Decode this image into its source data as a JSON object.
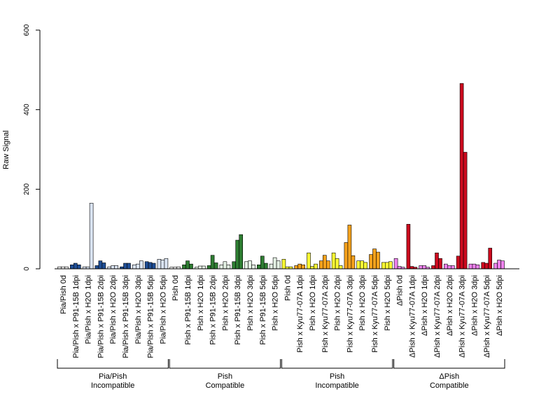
{
  "chart_data": {
    "type": "bar",
    "ylabel": "Raw Signal",
    "ylim": [
      0,
      600
    ],
    "yticks": [
      0,
      200,
      400,
      600
    ],
    "bars_per_category": 3,
    "categories": [
      {
        "label": "Pia/Pish 0d",
        "values": [
          5,
          5,
          5
        ],
        "color": "#f4f4f4"
      },
      {
        "label": "Pia/Pish x P91-15B 1dpi",
        "values": [
          10,
          14,
          10
        ],
        "color": "#1f4e96"
      },
      {
        "label": "Pia/Pish x H2O 1dpi",
        "values": [
          5,
          5,
          165
        ],
        "color": "#dbe5f4"
      },
      {
        "label": "Pia/Pish x P91-15B 2dpi",
        "values": [
          8,
          20,
          15
        ],
        "color": "#1f4e96"
      },
      {
        "label": "Pia/Pish x H2O 2dpi",
        "values": [
          5,
          8,
          8
        ],
        "color": "#dbe5f4"
      },
      {
        "label": "Pia/Pish x P91-15B 3dpi",
        "values": [
          5,
          14,
          14
        ],
        "color": "#1f4e96"
      },
      {
        "label": "Pia/Pish x H2O 3dpi",
        "values": [
          10,
          12,
          20
        ],
        "color": "#dbe5f4"
      },
      {
        "label": "Pia/Pish x P91-15B 5dpi",
        "values": [
          18,
          16,
          14
        ],
        "color": "#1f4e96"
      },
      {
        "label": "Pia/Pish x H2O 5dpi",
        "values": [
          24,
          22,
          26
        ],
        "color": "#dbe5f4"
      },
      {
        "label": "Pish 0d",
        "values": [
          4,
          4,
          5
        ],
        "color": "#f4f4f4"
      },
      {
        "label": "Pish x P91-15B 1dpi",
        "values": [
          10,
          20,
          12
        ],
        "color": "#2e7d32"
      },
      {
        "label": "Pish x H2O 1dpi",
        "values": [
          4,
          7,
          7
        ],
        "color": "#e5f2e5"
      },
      {
        "label": "Pish x P91-15B 2dpi",
        "values": [
          8,
          34,
          15
        ],
        "color": "#2e7d32"
      },
      {
        "label": "Pish x H2O 2dpi",
        "values": [
          10,
          18,
          10
        ],
        "color": "#e5f2e5"
      },
      {
        "label": "Pish x P91-15B 3dpi",
        "values": [
          18,
          72,
          86
        ],
        "color": "#2e7d32"
      },
      {
        "label": "Pish x H2O 3dpi",
        "values": [
          18,
          20,
          10
        ],
        "color": "#e5f2e5"
      },
      {
        "label": "Pish x P91-15B 5dpi",
        "values": [
          10,
          32,
          14
        ],
        "color": "#2e7d32"
      },
      {
        "label": "Pish x H2O 5dpi",
        "values": [
          12,
          28,
          20
        ],
        "color": "#e5f2e5"
      },
      {
        "label": "Pish 0d",
        "values": [
          24,
          5,
          5
        ],
        "color": "#ffff33"
      },
      {
        "label": "Pish x Kyu77-07A 1dpi",
        "values": [
          8,
          12,
          10
        ],
        "color": "#f7a21b"
      },
      {
        "label": "Pish x H2O 1dpi",
        "values": [
          40,
          6,
          12
        ],
        "color": "#ffff33"
      },
      {
        "label": "Pish x Kyu77-07A 2dpi",
        "values": [
          20,
          34,
          20
        ],
        "color": "#f7a21b"
      },
      {
        "label": "Pish x H2O 2dpi",
        "values": [
          40,
          26,
          8
        ],
        "color": "#ffff33"
      },
      {
        "label": "Pish x Kyu77-07A 3dpi",
        "values": [
          66,
          110,
          33
        ],
        "color": "#f7a21b"
      },
      {
        "label": "Pish x H2O 3dpi",
        "values": [
          20,
          20,
          16
        ],
        "color": "#ffff33"
      },
      {
        "label": "Pish x Kyu77-07A 5dpi",
        "values": [
          36,
          50,
          42
        ],
        "color": "#f7a21b"
      },
      {
        "label": "Pish x H2O 5dpi",
        "values": [
          16,
          16,
          18
        ],
        "color": "#ffff33"
      },
      {
        "label": "ΔPish 0d",
        "values": [
          26,
          6,
          4
        ],
        "color": "#ee82ee"
      },
      {
        "label": "ΔPish x Kyu77-07A 1dpi",
        "values": [
          112,
          6,
          4
        ],
        "color": "#cc0a1e"
      },
      {
        "label": "ΔPish x H2O 1dpi",
        "values": [
          8,
          8,
          4
        ],
        "color": "#ee82ee"
      },
      {
        "label": "ΔPish x Kyu77-07A 2dpi",
        "values": [
          8,
          40,
          26
        ],
        "color": "#cc0a1e"
      },
      {
        "label": "ΔPish x H2O 2dpi",
        "values": [
          12,
          8,
          8
        ],
        "color": "#ee82ee"
      },
      {
        "label": "ΔPish x Kyu77-07A 3dpi",
        "values": [
          32,
          466,
          293
        ],
        "color": "#cc0a1e"
      },
      {
        "label": "ΔPish x H2O 3dpi",
        "values": [
          12,
          12,
          10
        ],
        "color": "#ee82ee"
      },
      {
        "label": "ΔPish x Kyu77-07A 5dpi",
        "values": [
          16,
          14,
          52
        ],
        "color": "#cc0a1e"
      },
      {
        "label": "ΔPish x H2O 5dpi",
        "values": [
          14,
          22,
          20
        ],
        "color": "#ee82ee"
      }
    ],
    "groups": [
      {
        "line1": "Pia/Pish",
        "line2": "Incompatible",
        "start": 0,
        "end": 8
      },
      {
        "line1": "Pish",
        "line2": "Compatible",
        "start": 9,
        "end": 17
      },
      {
        "line1": "Pish",
        "line2": "Incompatible",
        "start": 18,
        "end": 26
      },
      {
        "line1": "ΔPish",
        "line2": "Compatible",
        "start": 27,
        "end": 35
      }
    ],
    "grid": false,
    "legend": "none"
  }
}
